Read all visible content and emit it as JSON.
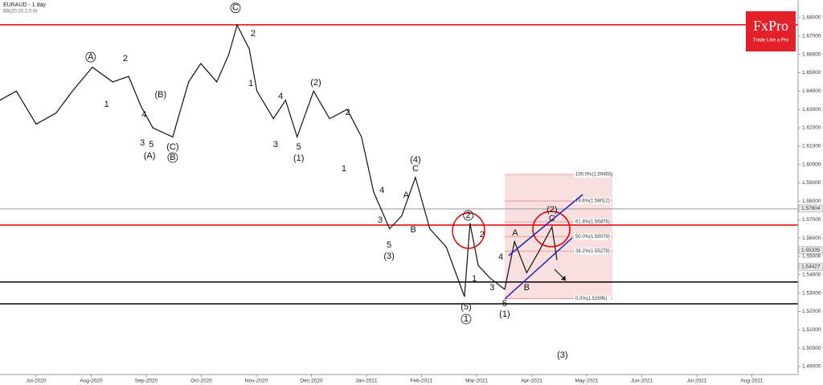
{
  "chart_data": {
    "type": "line",
    "title": "EURAUD - 1 day",
    "subtitle": "BB(20,20,2,0,0)",
    "brand": "FxPro",
    "brand_tagline": "Trade Like a Pro",
    "color": "#111111",
    "xlim": [
      -0.657,
      13.84
    ],
    "ylim": [
      1.4856,
      1.6896
    ],
    "xticks": [
      {
        "value": 0,
        "label": "Jul-2020"
      },
      {
        "value": 1,
        "label": "Aug-2020"
      },
      {
        "value": 2,
        "label": "Sep-2020"
      },
      {
        "value": 3,
        "label": "Oct-2020"
      },
      {
        "value": 4,
        "label": "Nov-2020"
      },
      {
        "value": 5,
        "label": "Dec-2020"
      },
      {
        "value": 6,
        "label": "Jan-2021"
      },
      {
        "value": 7,
        "label": "Feb-2021"
      },
      {
        "value": 8,
        "label": "Mar-2021"
      },
      {
        "value": 9,
        "label": "Apr-2021"
      },
      {
        "value": 10,
        "label": "May-2021"
      },
      {
        "value": 11,
        "label": "Jun-2021"
      },
      {
        "value": 12,
        "label": "Jul-2021"
      },
      {
        "value": 13,
        "label": "Aug-2021"
      }
    ],
    "yticks": [
      {
        "value": 1.49,
        "label": "1.49000"
      },
      {
        "value": 1.5,
        "label": "1.50000"
      },
      {
        "value": 1.51,
        "label": "1.51000"
      },
      {
        "value": 1.52,
        "label": "1.52000"
      },
      {
        "value": 1.53,
        "label": "1.53000"
      },
      {
        "value": 1.54,
        "label": "1.54000"
      },
      {
        "value": 1.55,
        "label": "1.55000"
      },
      {
        "value": 1.56,
        "label": "1.56000"
      },
      {
        "value": 1.57,
        "label": "1.57000"
      },
      {
        "value": 1.58,
        "label": "1.58000"
      },
      {
        "value": 1.59,
        "label": "1.59000"
      },
      {
        "value": 1.6,
        "label": "1.60000"
      },
      {
        "value": 1.61,
        "label": "1.61000"
      },
      {
        "value": 1.62,
        "label": "1.62000"
      },
      {
        "value": 1.63,
        "label": "1.63000"
      },
      {
        "value": 1.64,
        "label": "1.64000"
      },
      {
        "value": 1.65,
        "label": "1.65000"
      },
      {
        "value": 1.66,
        "label": "1.66000"
      },
      {
        "value": 1.67,
        "label": "1.67000"
      },
      {
        "value": 1.68,
        "label": "1.68000"
      }
    ],
    "grid": true,
    "x": [
      -0.66,
      -0.36,
      0,
      0.36,
      0.66,
      1.02,
      1.39,
      1.68,
      1.9,
      2.12,
      2.48,
      2.77,
      2.99,
      3.28,
      3.5,
      3.65,
      3.87,
      4.01,
      4.31,
      4.53,
      4.74,
      5.04,
      5.33,
      5.65,
      5.91,
      6.13,
      6.42,
      6.64,
      6.89,
      7.15,
      7.45,
      7.78,
      7.88,
      8.03,
      8.25,
      8.51,
      8.69,
      8.91,
      9.12,
      9.37,
      9.46
    ],
    "values": [
      1.635,
      1.64,
      1.622,
      1.628,
      1.64,
      1.653,
      1.645,
      1.648,
      1.632,
      1.62,
      1.615,
      1.645,
      1.655,
      1.645,
      1.66,
      1.676,
      1.663,
      1.64,
      1.625,
      1.635,
      1.615,
      1.64,
      1.625,
      1.63,
      1.615,
      1.585,
      1.565,
      1.572,
      1.593,
      1.565,
      1.555,
      1.528,
      1.568,
      1.545,
      1.538,
      1.532,
      1.558,
      1.541,
      1.552,
      1.566,
      1.548
    ],
    "levels": [
      {
        "value": 1.6761,
        "color": "#e00000"
      },
      {
        "value": 1.567,
        "color": "#e00000"
      },
      {
        "value": 1.5758,
        "color": "#888888"
      },
      {
        "value": 1.536,
        "color": "#000000"
      },
      {
        "value": 1.5241,
        "color": "#000000"
      }
    ],
    "price_tags": [
      1.57604,
      1.55335,
      1.54427
    ],
    "fib_levels": [
      {
        "value": 1.5946,
        "label": "100.0%(1.59460)"
      },
      {
        "value": 1.58012,
        "label": "78.6%(1.58012)"
      },
      {
        "value": 1.56876,
        "label": "61.8%(1.56876)"
      },
      {
        "value": 1.56079,
        "label": "50.0%(1.56079)"
      },
      {
        "value": 1.55279,
        "label": "38.2%(1.55279)"
      },
      {
        "value": 1.52695,
        "label": "0.0%(1.52695)"
      }
    ],
    "annotations": [
      {
        "text": "A",
        "x": 0.99,
        "y": 1.6585,
        "circled": true
      },
      {
        "text": "2",
        "x": 1.62,
        "y": 1.6577
      },
      {
        "text": "1",
        "x": 1.28,
        "y": 1.6327
      },
      {
        "text": "(B)",
        "x": 2.26,
        "y": 1.638
      },
      {
        "text": "4",
        "x": 1.96,
        "y": 1.627
      },
      {
        "text": "3",
        "x": 1.93,
        "y": 1.6117
      },
      {
        "text": "5",
        "x": 2.09,
        "y": 1.6108
      },
      {
        "text": "(C)",
        "x": 2.48,
        "y": 1.6095
      },
      {
        "text": "(A)",
        "x": 2.06,
        "y": 1.6047
      },
      {
        "text": "B",
        "x": 2.48,
        "y": 1.6038,
        "circled": true
      },
      {
        "text": "C",
        "x": 3.62,
        "y": 1.6853,
        "circled": true
      },
      {
        "text": "2",
        "x": 3.94,
        "y": 1.6712
      },
      {
        "text": "1",
        "x": 3.9,
        "y": 1.644
      },
      {
        "text": "4",
        "x": 4.44,
        "y": 1.637
      },
      {
        "text": "3",
        "x": 4.35,
        "y": 1.6108
      },
      {
        "text": "5",
        "x": 4.77,
        "y": 1.6095
      },
      {
        "text": "(1)",
        "x": 4.77,
        "y": 1.6034
      },
      {
        "text": "(2)",
        "x": 5.08,
        "y": 1.6445
      },
      {
        "text": "2",
        "x": 5.66,
        "y": 1.6283
      },
      {
        "text": "1",
        "x": 5.59,
        "y": 1.5977
      },
      {
        "text": "(4)",
        "x": 6.89,
        "y": 1.6025
      },
      {
        "text": "C",
        "x": 6.89,
        "y": 1.5977
      },
      {
        "text": "4",
        "x": 6.28,
        "y": 1.5859
      },
      {
        "text": "A",
        "x": 6.72,
        "y": 1.5832
      },
      {
        "text": "3",
        "x": 6.25,
        "y": 1.5697
      },
      {
        "text": "B",
        "x": 6.85,
        "y": 1.5644
      },
      {
        "text": "5",
        "x": 6.41,
        "y": 1.5561
      },
      {
        "text": "(3)",
        "x": 6.41,
        "y": 1.55
      },
      {
        "text": "2",
        "x": 7.85,
        "y": 1.5723,
        "circled": true
      },
      {
        "text": "2",
        "x": 8.1,
        "y": 1.5618
      },
      {
        "text": "1",
        "x": 7.96,
        "y": 1.5377
      },
      {
        "text": "(5)",
        "x": 7.81,
        "y": 1.5224
      },
      {
        "text": "1",
        "x": 7.81,
        "y": 1.5158,
        "circled": true
      },
      {
        "text": "4",
        "x": 8.44,
        "y": 1.5495
      },
      {
        "text": "3",
        "x": 8.28,
        "y": 1.5329
      },
      {
        "text": "5",
        "x": 8.51,
        "y": 1.5241
      },
      {
        "text": "(1)",
        "x": 8.51,
        "y": 1.5184
      },
      {
        "text": "A",
        "x": 8.7,
        "y": 1.5627
      },
      {
        "text": "B",
        "x": 8.91,
        "y": 1.5329
      },
      {
        "text": "C",
        "x": 9.37,
        "y": 1.5705
      },
      {
        "text": "(2)",
        "x": 9.37,
        "y": 1.5754
      },
      {
        "text": "(3)",
        "x": 9.56,
        "y": 1.4961
      }
    ]
  }
}
